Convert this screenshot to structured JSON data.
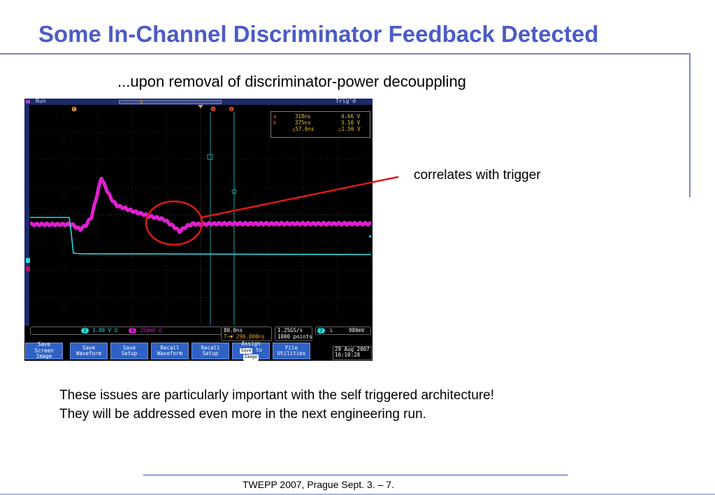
{
  "slide": {
    "title": "Some In-Channel Discriminator Feedback Detected",
    "subtitle": "...upon removal of discriminator-power decouppling",
    "annotation": "correlates with trigger",
    "body_lines": [
      "These issues are particularly important with the self triggered architecture!",
      "They will be addressed even more in the next engineering run."
    ],
    "footer": "TWEPP 2007, Prague Sept. 3. – 7."
  },
  "scope": {
    "run_label": "Run",
    "trig_label": "Trig'd",
    "cursor_a_label": "a",
    "cursor_b_label": "b",
    "trigger_marker": "T",
    "position_marker": "U",
    "measurements": [
      {
        "cursor": "a",
        "time": "318ns",
        "volt": "4.66 V"
      },
      {
        "cursor": "b",
        "time": "375ns",
        "volt": "3.10 V"
      },
      {
        "cursor": "",
        "time": "△57.6ns",
        "volt": "△1.56 V"
      }
    ],
    "channels": [
      {
        "id": "2",
        "scale": "1.00 V  Ω",
        "color": "#2ad8e0"
      },
      {
        "id": "3",
        "scale": "250mV Ω",
        "color": "#d020c8"
      }
    ],
    "timebase": "80.0ns",
    "trigger_position": "T→▼ 296.000ns",
    "sample_rate": "1.25GS/s",
    "record_length": "1000 points",
    "trigger": {
      "channel": "2",
      "slope": "⮧",
      "level": "980mV"
    },
    "menu": [
      {
        "line1": "Save",
        "line2": "Screen Image"
      },
      {
        "line1": "Save",
        "line2": "Waveform"
      },
      {
        "line1": "Save",
        "line2": "Setup"
      },
      {
        "line1": "Recall",
        "line2": "Waveform"
      },
      {
        "line1": "Recall",
        "line2": "Setup"
      },
      {
        "line1": "Assign",
        "line2": "Save",
        "line3": "to",
        "line4": "Image"
      },
      {
        "line1": "File",
        "line2": "Utilities"
      }
    ],
    "date": "29 Aug 2007",
    "time": "16:10:28"
  },
  "colors": {
    "title": "#4b5cc4",
    "ch2_trace": "#2ad8e0",
    "ch3_trace": "#e020d0",
    "annotation_line": "#e01818"
  }
}
